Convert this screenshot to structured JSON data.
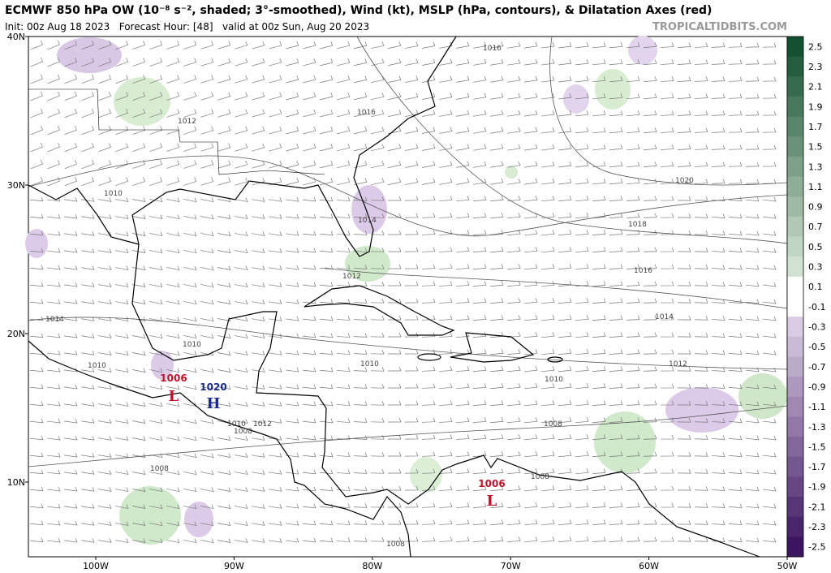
{
  "header": {
    "title": "ECMWF 850 hPa OW (10⁻⁸ s⁻², shaded; 3°-smoothed), Wind (kt), MSLP (hPa, contours), & Dilatation Axes (red)",
    "subtitle": "Init: 00z Aug 18 2023   Forecast Hour: [48]   valid at 00z Sun, Aug 20 2023",
    "watermark": "TROPICALTIDBITS.COM"
  },
  "axes": {
    "latitude": [
      "40N",
      "30N",
      "20N",
      "10N"
    ],
    "longitude": [
      "100W",
      "90W",
      "80W",
      "70W",
      "60W",
      "50W"
    ]
  },
  "colorbar": {
    "ticks": [
      2.5,
      2.3,
      2.1,
      1.9,
      1.7,
      1.5,
      1.3,
      1.1,
      0.9,
      0.7,
      0.5,
      0.3,
      0.1,
      -0.1,
      -0.3,
      -0.5,
      -0.7,
      -0.9,
      -1.1,
      -1.3,
      -1.5,
      -1.7,
      -1.9,
      -2.1,
      -2.3,
      -2.5
    ]
  },
  "contours": [
    1016,
    1016,
    1012,
    1010,
    1014,
    1012,
    1014,
    1010,
    1010,
    1010,
    1020,
    1018,
    1016,
    1014,
    1012,
    1010,
    1008,
    1010,
    1012,
    1008,
    1008,
    1008,
    1008
  ],
  "systems": [
    {
      "pressure": "1006",
      "letter": "L"
    },
    {
      "pressure": "1020",
      "letter": "H"
    },
    {
      "pressure": "1006",
      "letter": "L"
    }
  ]
}
